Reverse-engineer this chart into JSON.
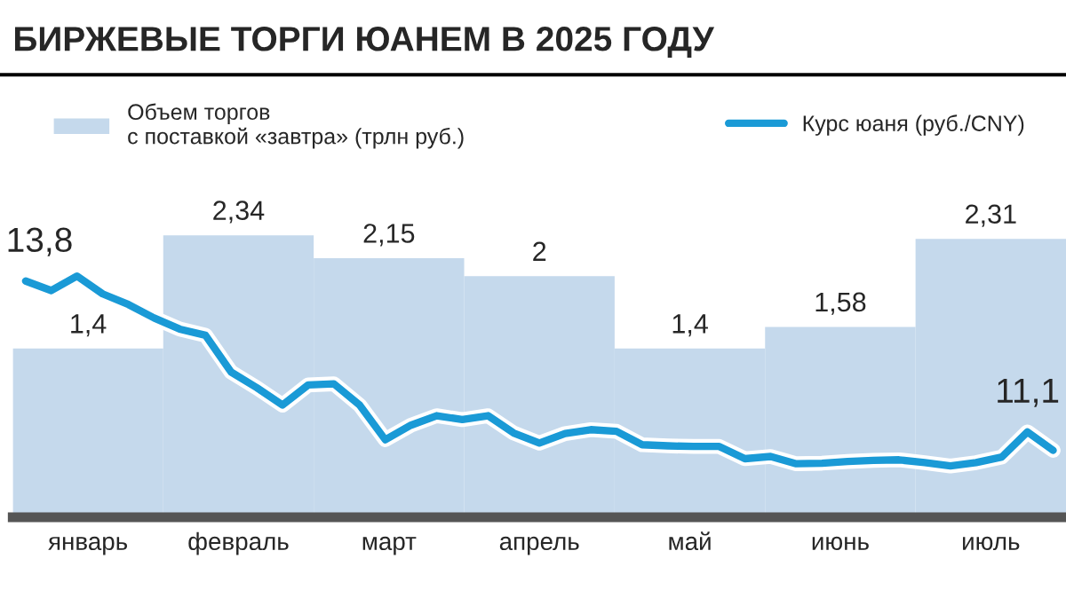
{
  "chart_data": [
    {
      "type": "bar",
      "title": "БИРЖЕВЫЕ ТОРГИ ЮАНЕМ В 2025 ГОДУ",
      "categories": [
        "январь",
        "февраль",
        "март",
        "апрель",
        "май",
        "июнь",
        "июль"
      ],
      "tick_labels": "x",
      "legend": "top left",
      "series": [
        {
          "name": "Объем торгов\nс поставкой «завтра» (трлн руб.)",
          "type": "bar",
          "color": "#c5d9ec",
          "values": [
            1.4,
            2.34,
            2.15,
            2,
            1.4,
            1.58,
            2.31
          ],
          "value_labels": [
            "1,4",
            "2,34",
            "2,15",
            "2",
            "1,4",
            "1,58",
            "2,31"
          ]
        }
      ]
    },
    {
      "type": "line",
      "categories": [
        null,
        null,
        null,
        null,
        null,
        null,
        null,
        null,
        null,
        null,
        null,
        null,
        null,
        null,
        null,
        null,
        null,
        null,
        null,
        null,
        null,
        null,
        null,
        null,
        null,
        null,
        null,
        null,
        null,
        null,
        null,
        null,
        null,
        null,
        null,
        null,
        null,
        null,
        null,
        null,
        null
      ],
      "tick_labels": false,
      "legend": "top right",
      "series": [
        {
          "name": "Курс юаня (руб./CNY)",
          "color": "#1a9ad6",
          "line_style": "solid",
          "values": [
            13.8,
            13.63,
            13.89,
            13.57,
            13.38,
            13.14,
            12.94,
            12.83,
            12.17,
            11.89,
            11.58,
            11.94,
            11.96,
            11.58,
            10.96,
            11.22,
            11.39,
            11.32,
            11.39,
            11.08,
            10.9,
            11.07,
            11.14,
            11.11,
            10.87,
            10.85,
            10.84,
            10.84,
            10.62,
            10.66,
            10.53,
            10.54,
            10.57,
            10.59,
            10.6,
            10.55,
            10.49,
            10.55,
            10.65,
            11.1,
            10.77
          ],
          "value_labels": [
            "13,8",
            null,
            null,
            null,
            null,
            null,
            null,
            null,
            null,
            null,
            null,
            null,
            null,
            null,
            null,
            null,
            null,
            null,
            null,
            null,
            null,
            null,
            null,
            null,
            null,
            null,
            null,
            null,
            null,
            null,
            null,
            null,
            null,
            null,
            null,
            null,
            null,
            null,
            null,
            "11,1",
            null
          ]
        }
      ]
    }
  ]
}
